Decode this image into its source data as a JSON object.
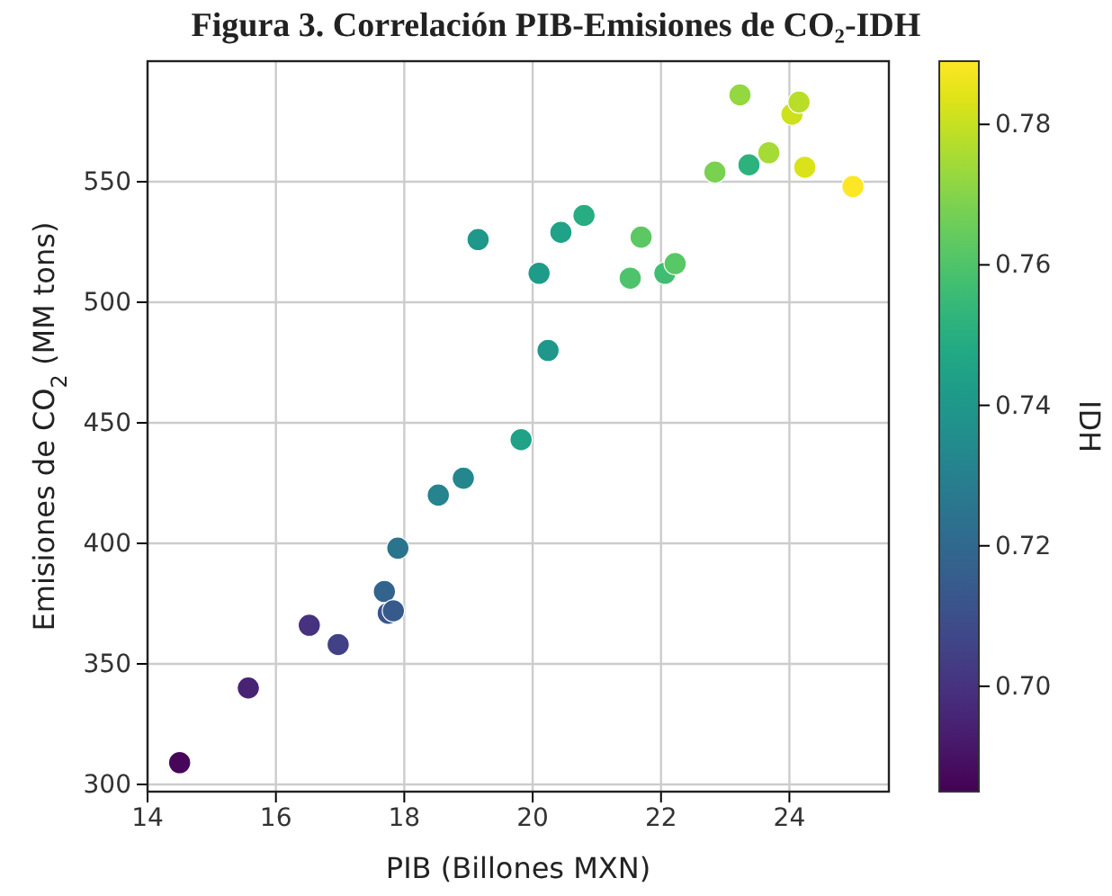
{
  "chart_data": {
    "type": "scatter",
    "title": "Figura 3. Correlación PIB-Emisiones de CO₂-IDH",
    "xlabel": "PIB (Billones MXN)",
    "ylabel": "Emisiones de CO$_{2}$ (MM tons)",
    "clabel": "IDH",
    "x": [
      14.5,
      15.57,
      16.52,
      16.97,
      17.69,
      17.75,
      17.83,
      17.9,
      18.53,
      18.92,
      19.82,
      19.15,
      20.1,
      20.24,
      20.44,
      20.8,
      21.52,
      21.69,
      22.06,
      22.22,
      22.84,
      23.23,
      23.37,
      23.68,
      24.04,
      24.15,
      24.24,
      24.99
    ],
    "values": [
      309,
      340,
      366,
      358,
      380,
      371,
      372,
      398,
      420,
      427,
      443,
      526,
      512,
      480,
      529,
      536,
      510,
      527,
      512,
      516,
      554,
      586,
      557,
      562,
      578,
      583,
      556,
      548
    ],
    "cvalues": [
      0.687,
      0.695,
      0.7,
      0.705,
      0.718,
      0.712,
      0.714,
      0.725,
      0.732,
      0.733,
      0.745,
      0.74,
      0.742,
      0.74,
      0.745,
      0.75,
      0.76,
      0.763,
      0.757,
      0.762,
      0.768,
      0.772,
      0.752,
      0.775,
      0.781,
      0.778,
      0.783,
      0.789
    ],
    "xlim": [
      14,
      25.55
    ],
    "xticks": [
      14,
      16,
      18,
      20,
      22,
      24
    ],
    "ylim": [
      297,
      600
    ],
    "yticks": [
      300,
      350,
      400,
      450,
      500,
      550
    ],
    "clim": [
      0.685,
      0.789
    ],
    "cticks": [
      {
        "value": 0.7,
        "label": "0.70"
      },
      0.72,
      0.74,
      0.76,
      0.78
    ],
    "grid": true,
    "marker": "circle"
  }
}
